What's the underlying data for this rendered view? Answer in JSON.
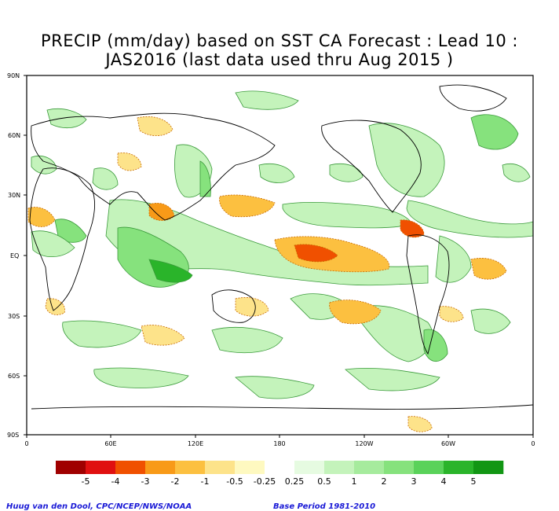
{
  "title": {
    "line1": "PRECIP (mm/day) based on SST CA Forecast : Lead 10 :",
    "line2": "JAS2016 (last data used thru Aug 2015 )"
  },
  "axes": {
    "y_ticks": [
      "90N",
      "60N",
      "30N",
      "EQ",
      "30S",
      "60S",
      "90S"
    ],
    "x_ticks": [
      "0",
      "60E",
      "120E",
      "180",
      "120W",
      "60W",
      "0"
    ]
  },
  "legend": {
    "labels": [
      "-5",
      "-4",
      "-3",
      "-2",
      "-1",
      "-0.5",
      "-0.25",
      "0.25",
      "0.5",
      "1",
      "2",
      "3",
      "4",
      "5"
    ],
    "colors": [
      "#a00000",
      "#e01010",
      "#f05000",
      "#f89a18",
      "#fcc040",
      "#fde38a",
      "#fef9c0",
      "#ffffff",
      "#e6fbe1",
      "#c4f3bb",
      "#a6eb9d",
      "#86e27d",
      "#5ad25a",
      "#2ab42a",
      "#129614"
    ]
  },
  "credits": {
    "left": "Huug van den Dool, CPC/NCEP/NWS/NOAA",
    "right": "Base Period 1981-2010"
  }
}
